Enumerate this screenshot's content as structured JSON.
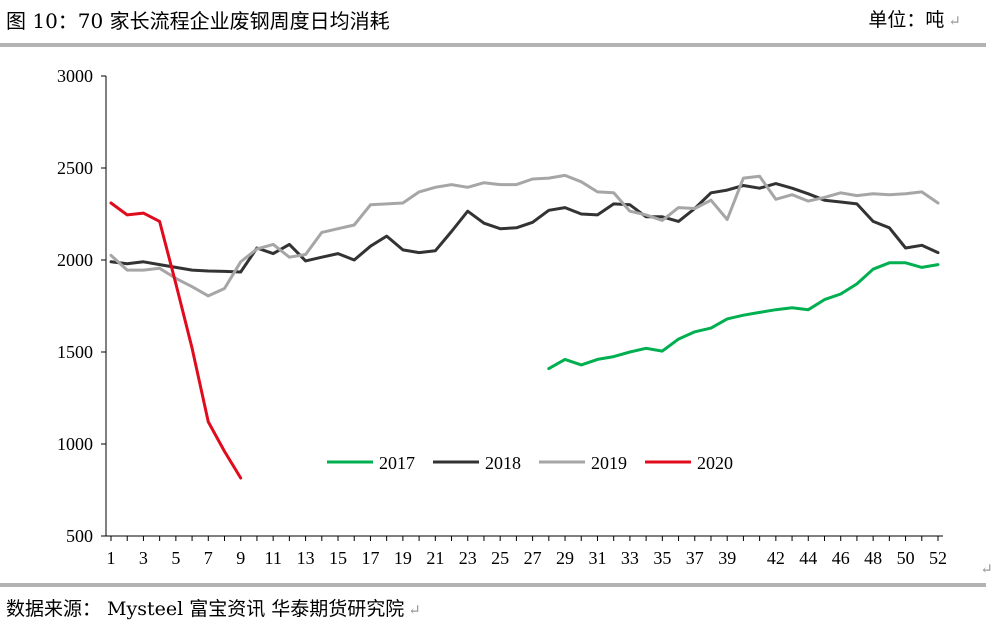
{
  "header": {
    "title": "图 10：70 家长流程企业废钢周度日均消耗",
    "unit": "单位：吨",
    "return_mark": "↵"
  },
  "footer": {
    "source": "数据来源：   Mysteel  富宝资讯  华泰期货研究院"
  },
  "chart_data": {
    "type": "line",
    "title": "70 家长流程企业废钢周度日均消耗",
    "xlabel": "",
    "ylabel": "单位：吨",
    "ylim": [
      500,
      3000
    ],
    "yticks": [
      500,
      1000,
      1500,
      2000,
      2500,
      3000
    ],
    "xlim": [
      1,
      52
    ],
    "xticks": [
      1,
      3,
      5,
      7,
      9,
      11,
      13,
      15,
      17,
      19,
      21,
      23,
      25,
      27,
      29,
      31,
      33,
      35,
      37,
      39,
      42,
      44,
      46,
      48,
      50,
      52
    ],
    "grid": false,
    "legend_position": "center-bottom",
    "series": [
      {
        "name": "2017",
        "color": "#00b050",
        "x": [
          28,
          29,
          30,
          31,
          32,
          33,
          34,
          35,
          36,
          37,
          38,
          39,
          40,
          41,
          42,
          43,
          44,
          45,
          46,
          47,
          48,
          49,
          50,
          51,
          52
        ],
        "values": [
          1410,
          1460,
          1430,
          1460,
          1475,
          1500,
          1520,
          1505,
          1570,
          1610,
          1630,
          1680,
          1700,
          1715,
          1730,
          1740,
          1730,
          1785,
          1815,
          1870,
          1950,
          1985,
          1985,
          1960,
          1975
        ]
      },
      {
        "name": "2018",
        "color": "#333333",
        "x": [
          1,
          2,
          3,
          4,
          5,
          6,
          7,
          8,
          9,
          10,
          11,
          12,
          13,
          14,
          15,
          16,
          17,
          18,
          19,
          20,
          21,
          22,
          23,
          24,
          25,
          26,
          27,
          28,
          29,
          30,
          31,
          32,
          33,
          34,
          35,
          36,
          37,
          38,
          39,
          40,
          41,
          42,
          43,
          44,
          45,
          46,
          47,
          48,
          49,
          50,
          51,
          52
        ],
        "values": [
          1990,
          1980,
          1990,
          1975,
          1960,
          1945,
          1940,
          1938,
          1935,
          2065,
          2035,
          2085,
          1995,
          2015,
          2035,
          2000,
          2075,
          2130,
          2055,
          2040,
          2050,
          2155,
          2265,
          2200,
          2170,
          2175,
          2205,
          2270,
          2285,
          2250,
          2245,
          2305,
          2300,
          2235,
          2235,
          2210,
          2280,
          2365,
          2380,
          2405,
          2390,
          2415,
          2390,
          2360,
          2325,
          2315,
          2305,
          2210,
          2175,
          2065,
          2080,
          2040
        ]
      },
      {
        "name": "2019",
        "color": "#a6a6a6",
        "x": [
          1,
          2,
          3,
          4,
          5,
          6,
          7,
          8,
          9,
          10,
          11,
          12,
          13,
          14,
          15,
          16,
          17,
          18,
          19,
          20,
          21,
          22,
          23,
          24,
          25,
          26,
          27,
          28,
          29,
          30,
          31,
          32,
          33,
          34,
          35,
          36,
          37,
          38,
          39,
          40,
          41,
          42,
          43,
          44,
          45,
          46,
          47,
          48,
          49,
          50,
          51,
          52
        ],
        "values": [
          2025,
          1945,
          1945,
          1955,
          1900,
          1855,
          1805,
          1845,
          1990,
          2060,
          2085,
          2015,
          2030,
          2150,
          2170,
          2190,
          2300,
          2305,
          2310,
          2370,
          2395,
          2410,
          2395,
          2420,
          2410,
          2410,
          2440,
          2445,
          2460,
          2425,
          2370,
          2365,
          2265,
          2245,
          2215,
          2285,
          2280,
          2325,
          2220,
          2445,
          2455,
          2330,
          2355,
          2320,
          2340,
          2365,
          2350,
          2360,
          2355,
          2360,
          2370,
          2310
        ]
      },
      {
        "name": "2020",
        "color": "#e00b1c",
        "x": [
          1,
          2,
          3,
          4,
          5,
          6,
          7,
          8,
          9
        ],
        "values": [
          2310,
          2245,
          2255,
          2210,
          1870,
          1520,
          1120,
          960,
          815
        ]
      }
    ]
  }
}
